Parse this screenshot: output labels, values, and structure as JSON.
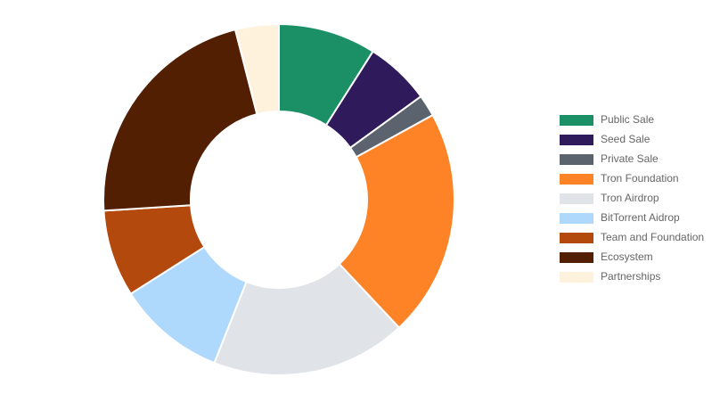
{
  "chart_data": {
    "type": "pie",
    "categories": [
      "Public Sale",
      "Seed Sale",
      "Private Sale",
      "Tron Foundation",
      "Tron Airdrop",
      "BitTorrent Aidrop",
      "Team and Foundation",
      "Ecosystem",
      "Partnerships"
    ],
    "values": [
      9,
      6,
      2,
      21,
      18,
      10,
      8,
      22,
      4
    ],
    "colors": [
      "#1b8f66",
      "#2f1a5b",
      "#5b636f",
      "#fd8326",
      "#e0e3e8",
      "#aed8fc",
      "#b4490d",
      "#521f03",
      "#fef2dd"
    ],
    "legend": "right"
  }
}
